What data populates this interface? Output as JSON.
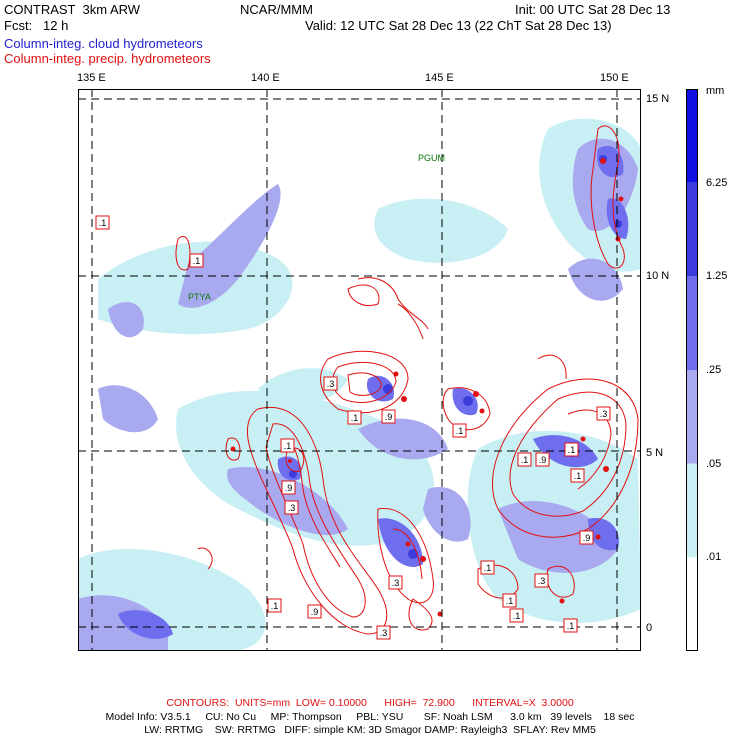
{
  "header": {
    "model_title": "CONTRAST  3km ARW",
    "org": "NCAR/MMM",
    "init": "Init: 00 UTC Sat 28 Dec 13",
    "fcst": "Fcst:   12 h",
    "valid": "Valid: 12 UTC Sat 28 Dec 13 (22 ChT Sat 28 Dec 13)",
    "field_shaded": "Column-integ. cloud hydrometeors",
    "field_contour": "Column-integ. precip. hydrometeors"
  },
  "map": {
    "lon_labels": [
      "135 E",
      "140 E",
      "145 E",
      "150 E"
    ],
    "lat_labels": [
      "15 N",
      "10 N",
      "5 N",
      "0"
    ],
    "stations": [
      {
        "name": "PGUM"
      },
      {
        "name": "PTYA"
      }
    ],
    "contour_labels": [
      ".1",
      ".1",
      ".1",
      ".3",
      ".9",
      ".1",
      ".1",
      ".9",
      ".1",
      ".9",
      ".3",
      ".1",
      ".9",
      ".3",
      ".1",
      ".3",
      ".1",
      ".1",
      ".3",
      ".9",
      ".1",
      ".3",
      ".1",
      ".1"
    ],
    "colors": {
      "grid": "#000000",
      "contour": "#e01010",
      "shade_light": "#c8f0f4",
      "shade_mid": "#a9a9f0",
      "shade_dark": "#6e6eee",
      "shade_deep": "#3c3cdc"
    }
  },
  "colorbar": {
    "unit": "mm",
    "levels": [
      "6.25",
      "1.25",
      ".25",
      ".05",
      ".01"
    ],
    "colors": [
      "#1010e0",
      "#3c3cdc",
      "#6e6eee",
      "#a9a9f0",
      "#c8f0f4",
      "#ffffff"
    ]
  },
  "footer": {
    "contours_info": "CONTOURS:  UNITS=mm  LOW= 0.10000      HIGH=  72.900      INTERVAL=X  3.0000",
    "model_info_1": "Model Info: V3.5.1     CU: No Cu     MP: Thompson     PBL: YSU       SF: Noah LSM      3.0 km   39 levels    18 sec",
    "model_info_2": "LW: RRTMG    SW: RRTMG   DIFF: simple KM: 3D Smagor DAMP: Rayleigh3  SFLAY: Rev MM5"
  }
}
